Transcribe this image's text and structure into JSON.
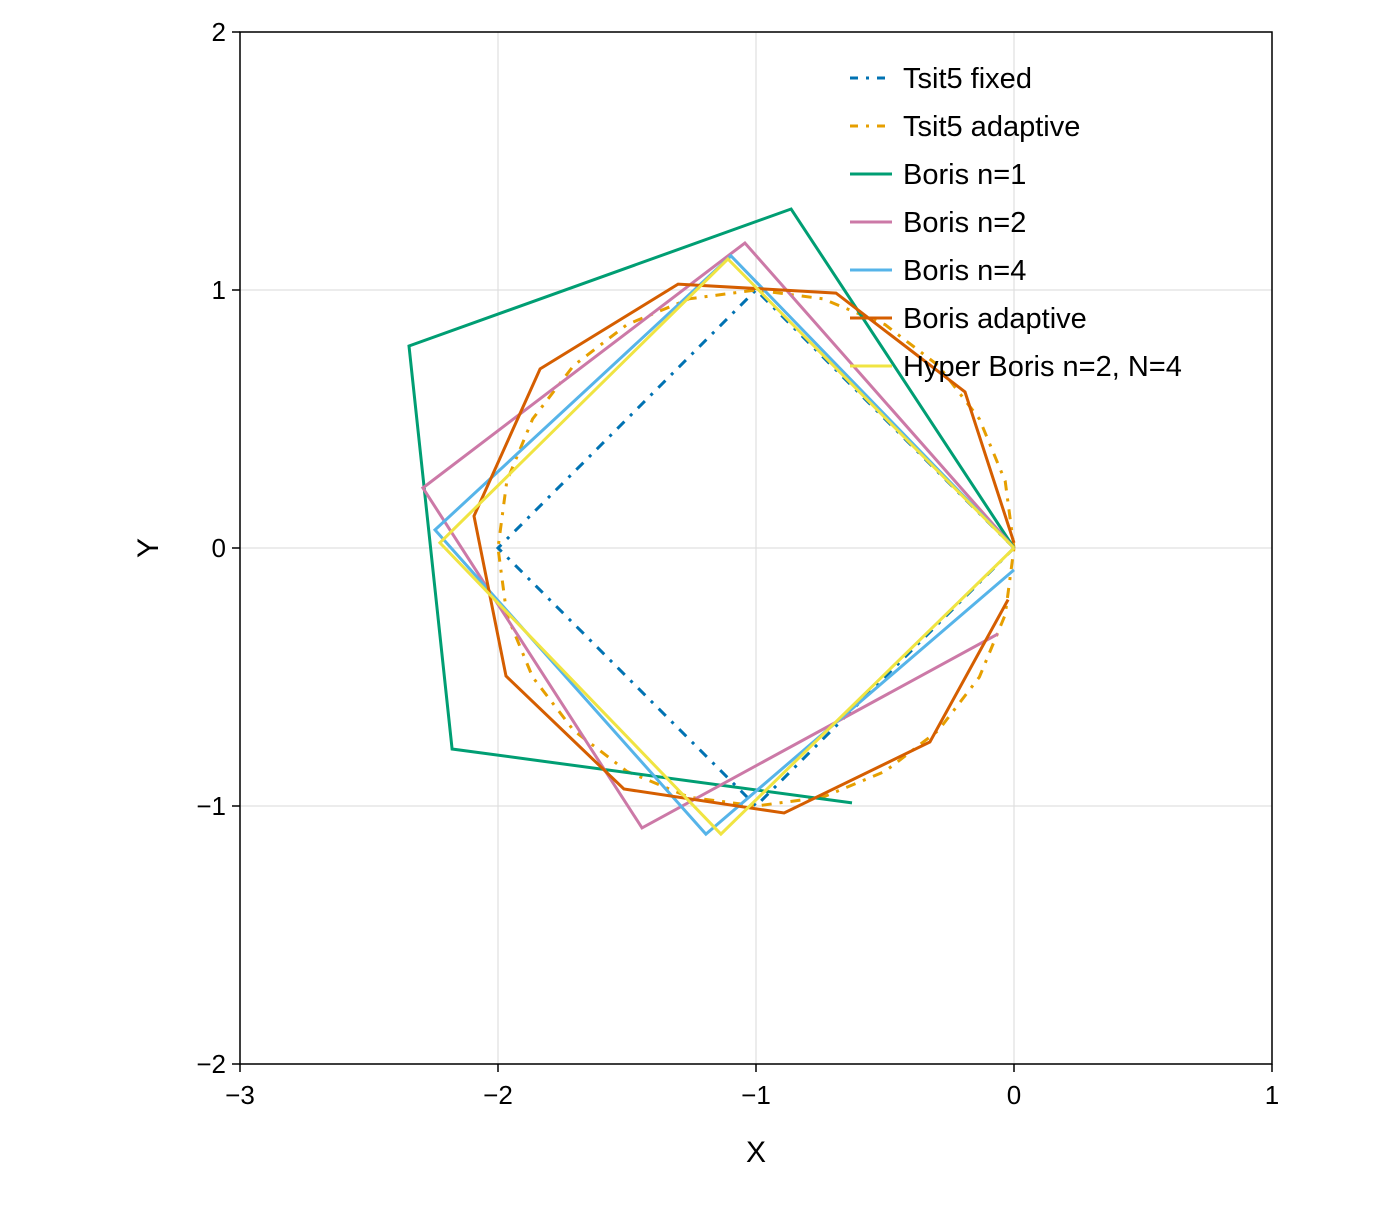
{
  "chart_data": {
    "type": "line",
    "title": "",
    "xlabel": "X",
    "ylabel": "Y",
    "xlim": [
      -3,
      1
    ],
    "ylim": [
      -2,
      2
    ],
    "xticks": [
      -3,
      -2,
      -1,
      0,
      1
    ],
    "yticks": [
      -2,
      -1,
      0,
      1,
      2
    ],
    "xtick_labels": [
      "−3",
      "−2",
      "−1",
      "0",
      "1"
    ],
    "ytick_labels": [
      "−2",
      "−1",
      "0",
      "1",
      "2"
    ],
    "grid": true,
    "legend_position": "top-right",
    "series": [
      {
        "name": "Tsit5 fixed",
        "color": "#0072b2",
        "style": "dashdot",
        "x": [
          0,
          -1,
          -2,
          -1,
          0
        ],
        "y": [
          0,
          1,
          0,
          -1,
          0
        ]
      },
      {
        "name": "Tsit5 adaptive",
        "color": "#e69f00",
        "style": "dashdot",
        "x": [
          0,
          -0.034,
          -0.134,
          -0.293,
          -0.5,
          -0.741,
          -1,
          -1.259,
          -1.5,
          -1.707,
          -1.866,
          -1.966,
          -2,
          -1.966,
          -1.866,
          -1.707,
          -1.5,
          -1.259,
          -1,
          -0.741,
          -0.5,
          -0.293,
          -0.134,
          -0.034,
          0
        ],
        "y": [
          0,
          0.259,
          0.5,
          0.707,
          0.866,
          0.966,
          1,
          0.966,
          0.866,
          0.707,
          0.5,
          0.259,
          0,
          -0.259,
          -0.5,
          -0.707,
          -0.866,
          -0.966,
          -1,
          -0.966,
          -0.866,
          -0.707,
          -0.5,
          -0.259,
          0
        ]
      },
      {
        "name": "Boris n=1",
        "color": "#009e73",
        "style": "solid",
        "x": [
          0,
          -0.864,
          -2.345,
          -2.178,
          -0.628
        ],
        "y": [
          0,
          1.314,
          0.783,
          -0.779,
          -0.988
        ]
      },
      {
        "name": "Boris n=2",
        "color": "#cc79a7",
        "style": "solid",
        "x": [
          0,
          -1.043,
          -2.291,
          -1.442,
          -0.062
        ],
        "y": [
          0,
          1.182,
          0.233,
          -1.085,
          -0.333
        ]
      },
      {
        "name": "Boris n=4",
        "color": "#56b4e9",
        "style": "solid",
        "x": [
          0,
          -1.097,
          -2.244,
          -1.194,
          0
        ],
        "y": [
          0,
          1.132,
          0.07,
          -1.109,
          -0.085
        ]
      },
      {
        "name": "Boris adaptive",
        "color": "#d55e00",
        "style": "solid",
        "x": [
          0,
          -0.19,
          -0.69,
          -1.302,
          -1.837,
          -2.093,
          -1.969,
          -1.512,
          -0.891,
          -0.326,
          -0.023
        ],
        "y": [
          0.02,
          0.605,
          0.988,
          1.023,
          0.694,
          0.124,
          -0.496,
          -0.934,
          -1.027,
          -0.752,
          -0.2
        ]
      },
      {
        "name": "Hyper Boris n=2, N=4",
        "color": "#f0e442",
        "style": "solid",
        "x": [
          0,
          -1.109,
          -2.225,
          -1.136,
          0
        ],
        "y": [
          0,
          1.12,
          0.02,
          -1.109,
          0
        ]
      }
    ]
  }
}
